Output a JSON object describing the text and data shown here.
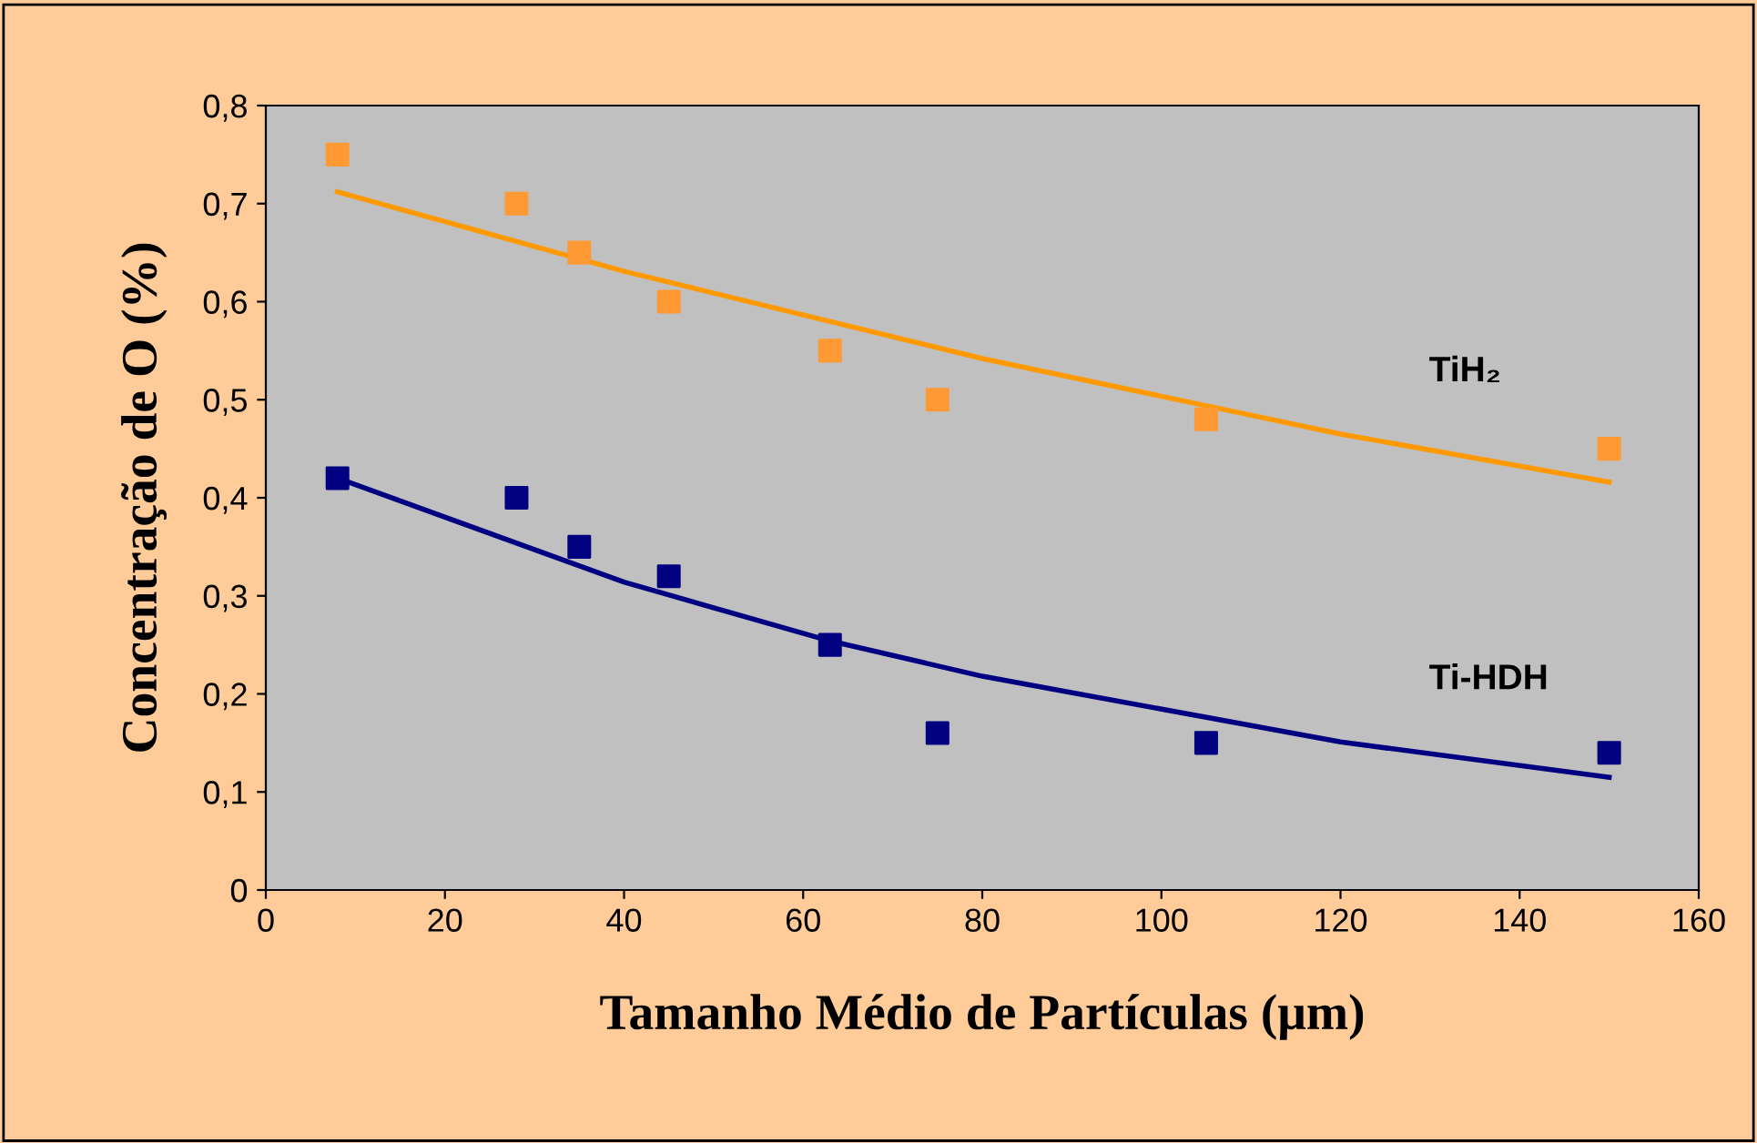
{
  "chart_data": {
    "type": "scatter",
    "xlabel": "Tamanho Médio de Partículas (μm)",
    "ylabel": "Concentração de O (%)",
    "xlim": [
      0,
      160
    ],
    "xticks": [
      0,
      20,
      40,
      60,
      80,
      100,
      120,
      140,
      160
    ],
    "ylim": [
      0,
      0.8
    ],
    "yticks": [
      {
        "value": 0,
        "label": "0"
      },
      {
        "value": 0.1,
        "label": "0,1"
      },
      {
        "value": 0.2,
        "label": "0,2"
      },
      {
        "value": 0.3,
        "label": "0,3"
      },
      {
        "value": 0.4,
        "label": "0,4"
      },
      {
        "value": 0.5,
        "label": "0,5"
      },
      {
        "value": 0.6,
        "label": "0,6"
      },
      {
        "value": 0.7,
        "label": "0,7"
      },
      {
        "value": 0.8,
        "label": "0,8"
      }
    ],
    "grid": false,
    "legend": false,
    "marker": "square",
    "series": [
      {
        "color": "#ff9933",
        "x": [
          8,
          28,
          35,
          45,
          63,
          75,
          105,
          150
        ],
        "values": [
          0.75,
          0.7,
          0.65,
          0.6,
          0.55,
          0.5,
          0.48,
          0.45
        ]
      },
      {
        "type": "line",
        "name": "TiH₂",
        "marker": "none",
        "color": "#ff9900",
        "x": [
          8,
          40,
          80,
          120,
          150
        ],
        "values": [
          0.712,
          0.631,
          0.542,
          0.465,
          0.416
        ]
      },
      {
        "color": "#000080",
        "x": [
          8,
          28,
          35,
          45,
          63,
          75,
          105,
          150
        ],
        "values": [
          0.42,
          0.4,
          0.35,
          0.32,
          0.25,
          0.16,
          0.15,
          0.14
        ]
      },
      {
        "type": "line",
        "name": "Ti-HDH",
        "marker": "none",
        "color": "#000080",
        "x": [
          8,
          40,
          63,
          80,
          120,
          150
        ],
        "values": [
          0.42,
          0.314,
          0.254,
          0.218,
          0.151,
          0.115
        ]
      }
    ]
  }
}
